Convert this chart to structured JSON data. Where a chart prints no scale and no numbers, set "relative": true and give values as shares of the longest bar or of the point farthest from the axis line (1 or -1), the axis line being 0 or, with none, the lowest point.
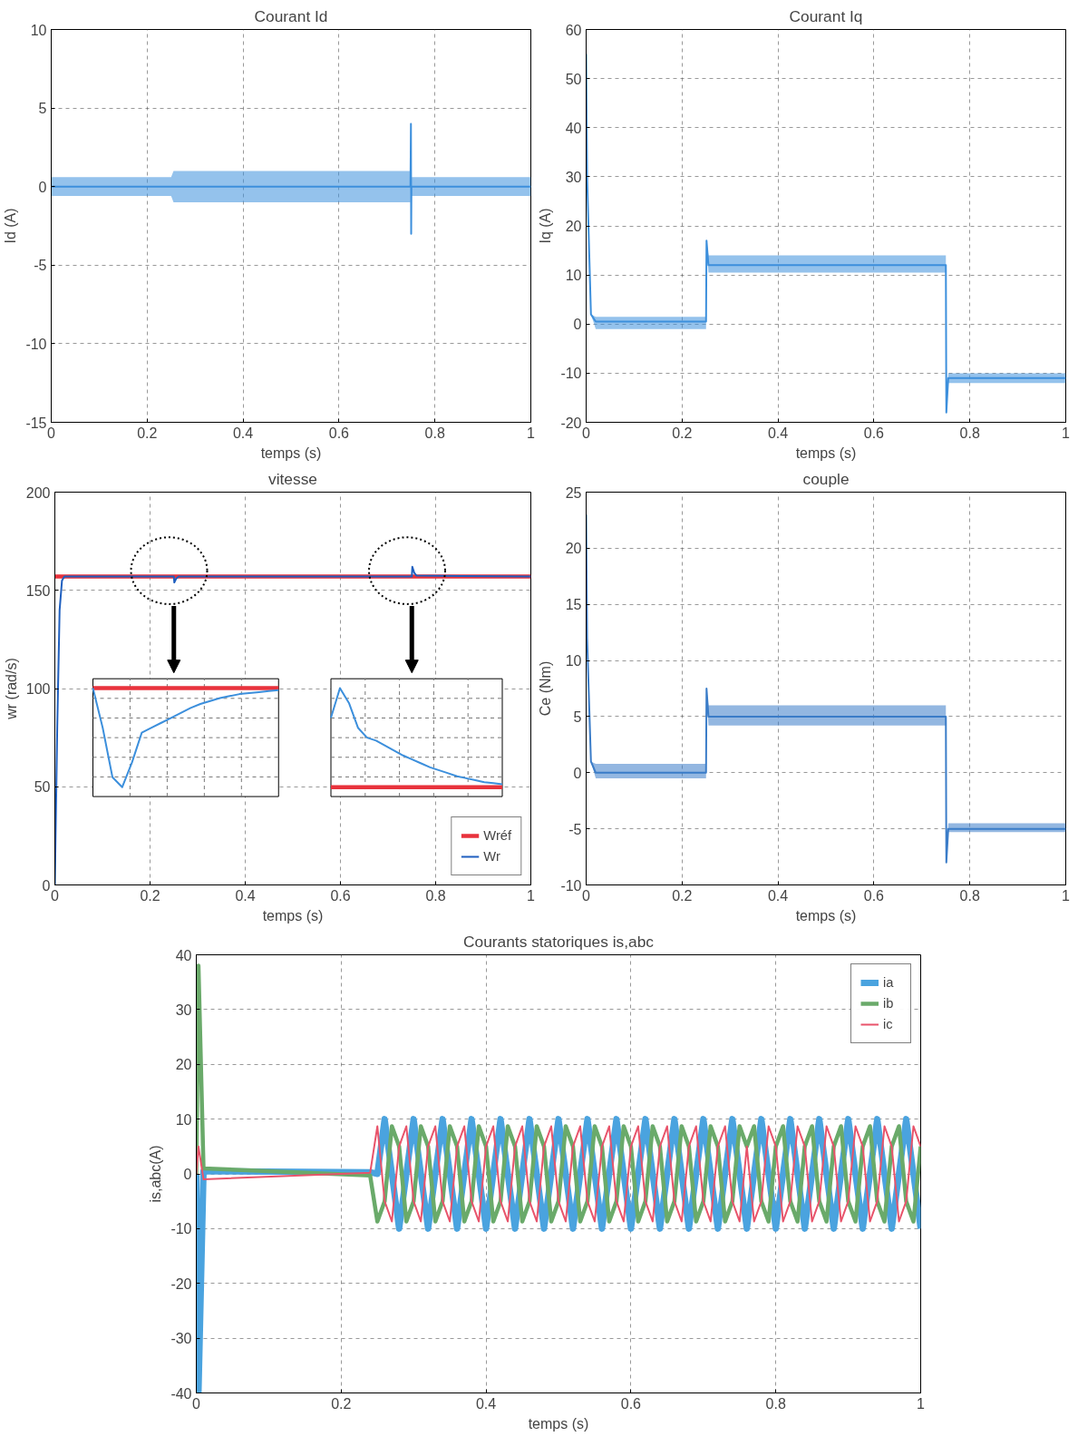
{
  "chart_data": [
    {
      "type": "line",
      "title": "Courant Id",
      "xlabel": "temps (s)",
      "ylabel": "Id (A)",
      "xlim": [
        0,
        1
      ],
      "ylim": [
        -15,
        10
      ],
      "xticks": [
        0,
        0.2,
        0.4,
        0.6,
        0.8,
        1
      ],
      "yticks": [
        -15,
        -10,
        -5,
        0,
        5,
        10
      ],
      "grid": true,
      "series": [
        {
          "color": "#3c8fdc",
          "x": [
            0,
            0.25,
            0.255,
            0.745,
            0.749,
            0.75,
            0.7505,
            0.751,
            0.755,
            1
          ],
          "values": [
            0,
            0,
            0,
            0,
            0,
            4,
            -3,
            0,
            0,
            0
          ],
          "lower": [
            -0.6,
            -0.6,
            -1,
            -1,
            -1,
            4,
            -3,
            -0.6,
            -0.6,
            -0.6
          ],
          "upper": [
            0.6,
            0.6,
            1,
            1,
            1,
            4,
            -3,
            0.6,
            0.6,
            0.6
          ]
        }
      ]
    },
    {
      "type": "line",
      "title": "Courant Iq",
      "xlabel": "temps (s)",
      "ylabel": "Iq (A)",
      "xlim": [
        0,
        1
      ],
      "ylim": [
        -20,
        60
      ],
      "xticks": [
        0,
        0.2,
        0.4,
        0.6,
        0.8,
        1
      ],
      "yticks": [
        -20,
        -10,
        0,
        10,
        20,
        30,
        40,
        50,
        60
      ],
      "grid": true,
      "series": [
        {
          "color": "#3c8fdc",
          "x": [
            0,
            0.002,
            0.01,
            0.02,
            0.25,
            0.251,
            0.255,
            0.26,
            0.75,
            0.751,
            0.755,
            0.76,
            1
          ],
          "values": [
            55,
            30,
            2,
            0.5,
            0.5,
            17,
            12,
            12,
            12,
            -18,
            -11,
            -11,
            -11
          ],
          "lower": [
            55,
            30,
            2,
            -1,
            -1,
            17,
            10.5,
            10.5,
            10.5,
            -18,
            -12,
            -12,
            -12
          ],
          "upper": [
            55,
            30,
            2,
            1.5,
            1.5,
            17,
            14,
            14,
            14,
            -18,
            -10,
            -10,
            -10
          ]
        }
      ]
    },
    {
      "type": "line",
      "title": "vitesse",
      "xlabel": "temps (s)",
      "ylabel": "wr (rad/s)",
      "xlim": [
        0,
        1
      ],
      "ylim": [
        0,
        200
      ],
      "xticks": [
        0,
        0.2,
        0.4,
        0.6,
        0.8,
        1
      ],
      "yticks": [
        0,
        50,
        100,
        150,
        200
      ],
      "grid": true,
      "legend": "bottom right",
      "series": [
        {
          "name": "Wréf",
          "color": "#e8323c",
          "x": [
            0,
            1
          ],
          "values": [
            157,
            157
          ]
        },
        {
          "name": "Wr",
          "color": "#1f5fbf",
          "x": [
            0,
            0.005,
            0.01,
            0.015,
            0.02,
            0.25,
            0.251,
            0.255,
            0.26,
            0.75,
            0.751,
            0.755,
            0.76,
            1
          ],
          "values": [
            0,
            80,
            140,
            155,
            157,
            157,
            154,
            156,
            157,
            157,
            162,
            159,
            157.5,
            157
          ]
        }
      ]
    },
    {
      "type": "line",
      "relative": true,
      "grid": true,
      "categories": [
        null,
        null,
        null,
        null,
        null,
        null,
        null,
        null,
        null,
        null,
        null,
        null,
        null,
        null,
        null,
        null,
        null,
        null,
        null,
        null
      ],
      "series": [
        {
          "color": "#e8323c",
          "values": [
            1,
            1,
            1,
            1,
            1,
            1,
            1,
            1,
            1,
            1,
            1,
            1,
            1,
            1,
            1,
            1,
            1,
            1,
            1,
            1
          ]
        },
        {
          "color": "#3c8fdc",
          "values": [
            1,
            0.6,
            0.1,
            0.0,
            0.25,
            0.55,
            0.6,
            0.65,
            0.7,
            0.75,
            0.8,
            0.84,
            0.87,
            0.9,
            0.92,
            0.94,
            0.95,
            0.96,
            0.97,
            0.98
          ]
        }
      ]
    },
    {
      "type": "line",
      "relative": true,
      "grid": true,
      "categories": [
        null,
        null,
        null,
        null,
        null,
        null,
        null,
        null,
        null,
        null,
        null,
        null,
        null,
        null,
        null,
        null,
        null,
        null,
        null,
        null
      ],
      "series": [
        {
          "color": "#e8323c",
          "values": [
            0,
            0,
            0,
            0,
            0,
            0,
            0,
            0,
            0,
            0,
            0,
            0,
            0,
            0,
            0,
            0,
            0,
            0,
            0,
            0
          ]
        },
        {
          "color": "#3c8fdc",
          "values": [
            0.7,
            1,
            0.85,
            0.6,
            0.5,
            0.47,
            0.42,
            0.37,
            0.32,
            0.28,
            0.24,
            0.2,
            0.17,
            0.14,
            0.11,
            0.09,
            0.07,
            0.05,
            0.04,
            0.03
          ]
        }
      ]
    },
    {
      "type": "line",
      "title": "couple",
      "xlabel": "temps (s)",
      "ylabel": "Ce (Nm)",
      "xlim": [
        0,
        1
      ],
      "ylim": [
        -10,
        25
      ],
      "xticks": [
        0,
        0.2,
        0.4,
        0.6,
        0.8,
        1
      ],
      "yticks": [
        -10,
        -5,
        0,
        5,
        10,
        15,
        20,
        25
      ],
      "grid": true,
      "series": [
        {
          "color": "#3a7cc8",
          "x": [
            0,
            0.002,
            0.01,
            0.02,
            0.25,
            0.251,
            0.255,
            0.26,
            0.75,
            0.751,
            0.755,
            0.76,
            1
          ],
          "values": [
            23,
            12,
            1,
            0,
            0,
            7.5,
            5,
            5,
            5,
            -8,
            -5,
            -5,
            -5
          ],
          "lower": [
            23,
            12,
            1,
            -0.5,
            -0.5,
            7.5,
            4.2,
            4.2,
            4.2,
            -8,
            -5.3,
            -5.3,
            -5.3
          ],
          "upper": [
            23,
            12,
            1,
            0.8,
            0.8,
            7.5,
            6,
            6,
            6,
            -8,
            -4.5,
            -4.5,
            -4.5
          ]
        }
      ]
    },
    {
      "type": "line",
      "title": "Courants statoriques is,abc",
      "xlabel": "temps (s)",
      "ylabel": "is,abc(A)",
      "xlim": [
        0,
        1
      ],
      "ylim": [
        -40,
        40
      ],
      "xticks": [
        0,
        0.2,
        0.4,
        0.6,
        0.8,
        1
      ],
      "yticks": [
        -40,
        -30,
        -20,
        -10,
        0,
        10,
        20,
        30,
        40
      ],
      "grid": true,
      "legend": "top right",
      "x": [
        0,
        0.003,
        0.01,
        0.24,
        0.25,
        0.26,
        0.27,
        0.28,
        0.29,
        0.3,
        0.31,
        0.32,
        0.33,
        0.34,
        0.35,
        0.36,
        0.37,
        0.38,
        0.39,
        0.4,
        0.41,
        0.42,
        0.43,
        0.44,
        0.45,
        0.46,
        0.47,
        0.48,
        0.49,
        0.5,
        0.51,
        0.52,
        0.53,
        0.54,
        0.55,
        0.56,
        0.57,
        0.58,
        0.59,
        0.6,
        0.61,
        0.62,
        0.63,
        0.64,
        0.65,
        0.66,
        0.67,
        0.68,
        0.69,
        0.7,
        0.71,
        0.72,
        0.73,
        0.74,
        0.75,
        0.76,
        0.77,
        0.78,
        0.79,
        0.8,
        0.81,
        0.82,
        0.83,
        0.84,
        0.85,
        0.86,
        0.87,
        0.88,
        0.89,
        0.9,
        0.91,
        0.92,
        0.93,
        0.94,
        0.95,
        0.96,
        0.97,
        0.98,
        0.99,
        1
      ],
      "series": [
        {
          "name": "ia",
          "color": "#4aa3df",
          "values": [
            0,
            -40,
            0.5,
            0.3,
            0,
            10,
            0,
            -10,
            0,
            10,
            0,
            -10,
            0,
            10,
            0,
            -10,
            0,
            10,
            0,
            -10,
            0,
            10,
            0,
            -10,
            0,
            10,
            0,
            -10,
            0,
            10,
            0,
            -10,
            0,
            10,
            0,
            -10,
            0,
            10,
            0,
            -10,
            0,
            10,
            0,
            -10,
            0,
            10,
            0,
            -10,
            0,
            10,
            0,
            -10,
            0,
            10,
            0,
            -10,
            0,
            10,
            0,
            -10,
            0,
            10,
            0,
            -10,
            0,
            10,
            0,
            -10,
            0,
            10,
            0,
            -10,
            0,
            10,
            0,
            -10,
            0,
            10,
            0,
            -10
          ]
        },
        {
          "name": "ib",
          "color": "#6aaa6a",
          "values": [
            0,
            38,
            1,
            -0.3,
            -8.7,
            -5,
            8.7,
            5,
            -8.7,
            -5,
            8.7,
            5,
            -8.7,
            -5,
            8.7,
            5,
            -8.7,
            -5,
            8.7,
            5,
            -8.7,
            -5,
            8.7,
            5,
            -8.7,
            -5,
            8.7,
            5,
            -8.7,
            -5,
            8.7,
            5,
            -8.7,
            -5,
            8.7,
            5,
            -8.7,
            -5,
            8.7,
            5,
            -8.7,
            -5,
            8.7,
            5,
            -8.7,
            -5,
            8.7,
            5,
            -8.7,
            -5,
            8.7,
            5,
            -8.7,
            -5,
            8.7,
            5,
            8.7,
            -5,
            -8.7,
            5,
            8.7,
            -5,
            -8.7,
            5,
            8.7,
            -5,
            -8.7,
            5,
            8.7,
            -5,
            -8.7,
            5,
            8.7,
            -5,
            -8.7,
            5,
            8.7,
            -5,
            -8.7,
            5
          ]
        },
        {
          "name": "ic",
          "color": "#e8536a",
          "values": [
            0,
            5,
            -1,
            0.2,
            8.7,
            -5,
            -8.7,
            5,
            8.7,
            -5,
            -8.7,
            5,
            8.7,
            -5,
            -8.7,
            5,
            8.7,
            -5,
            -8.7,
            5,
            8.7,
            -5,
            -8.7,
            5,
            8.7,
            -5,
            -8.7,
            5,
            8.7,
            -5,
            -8.7,
            5,
            8.7,
            -5,
            -8.7,
            5,
            8.7,
            -5,
            -8.7,
            5,
            8.7,
            -5,
            -8.7,
            5,
            8.7,
            -5,
            -8.7,
            5,
            8.7,
            -5,
            -8.7,
            5,
            8.7,
            -5,
            -8.7,
            5,
            -8.7,
            -5,
            8.7,
            5,
            -8.7,
            -5,
            8.7,
            5,
            -8.7,
            -5,
            8.7,
            5,
            -8.7,
            -5,
            8.7,
            5,
            -8.7,
            -5,
            8.7,
            5,
            -8.7,
            -5,
            8.7,
            5
          ]
        }
      ]
    }
  ]
}
